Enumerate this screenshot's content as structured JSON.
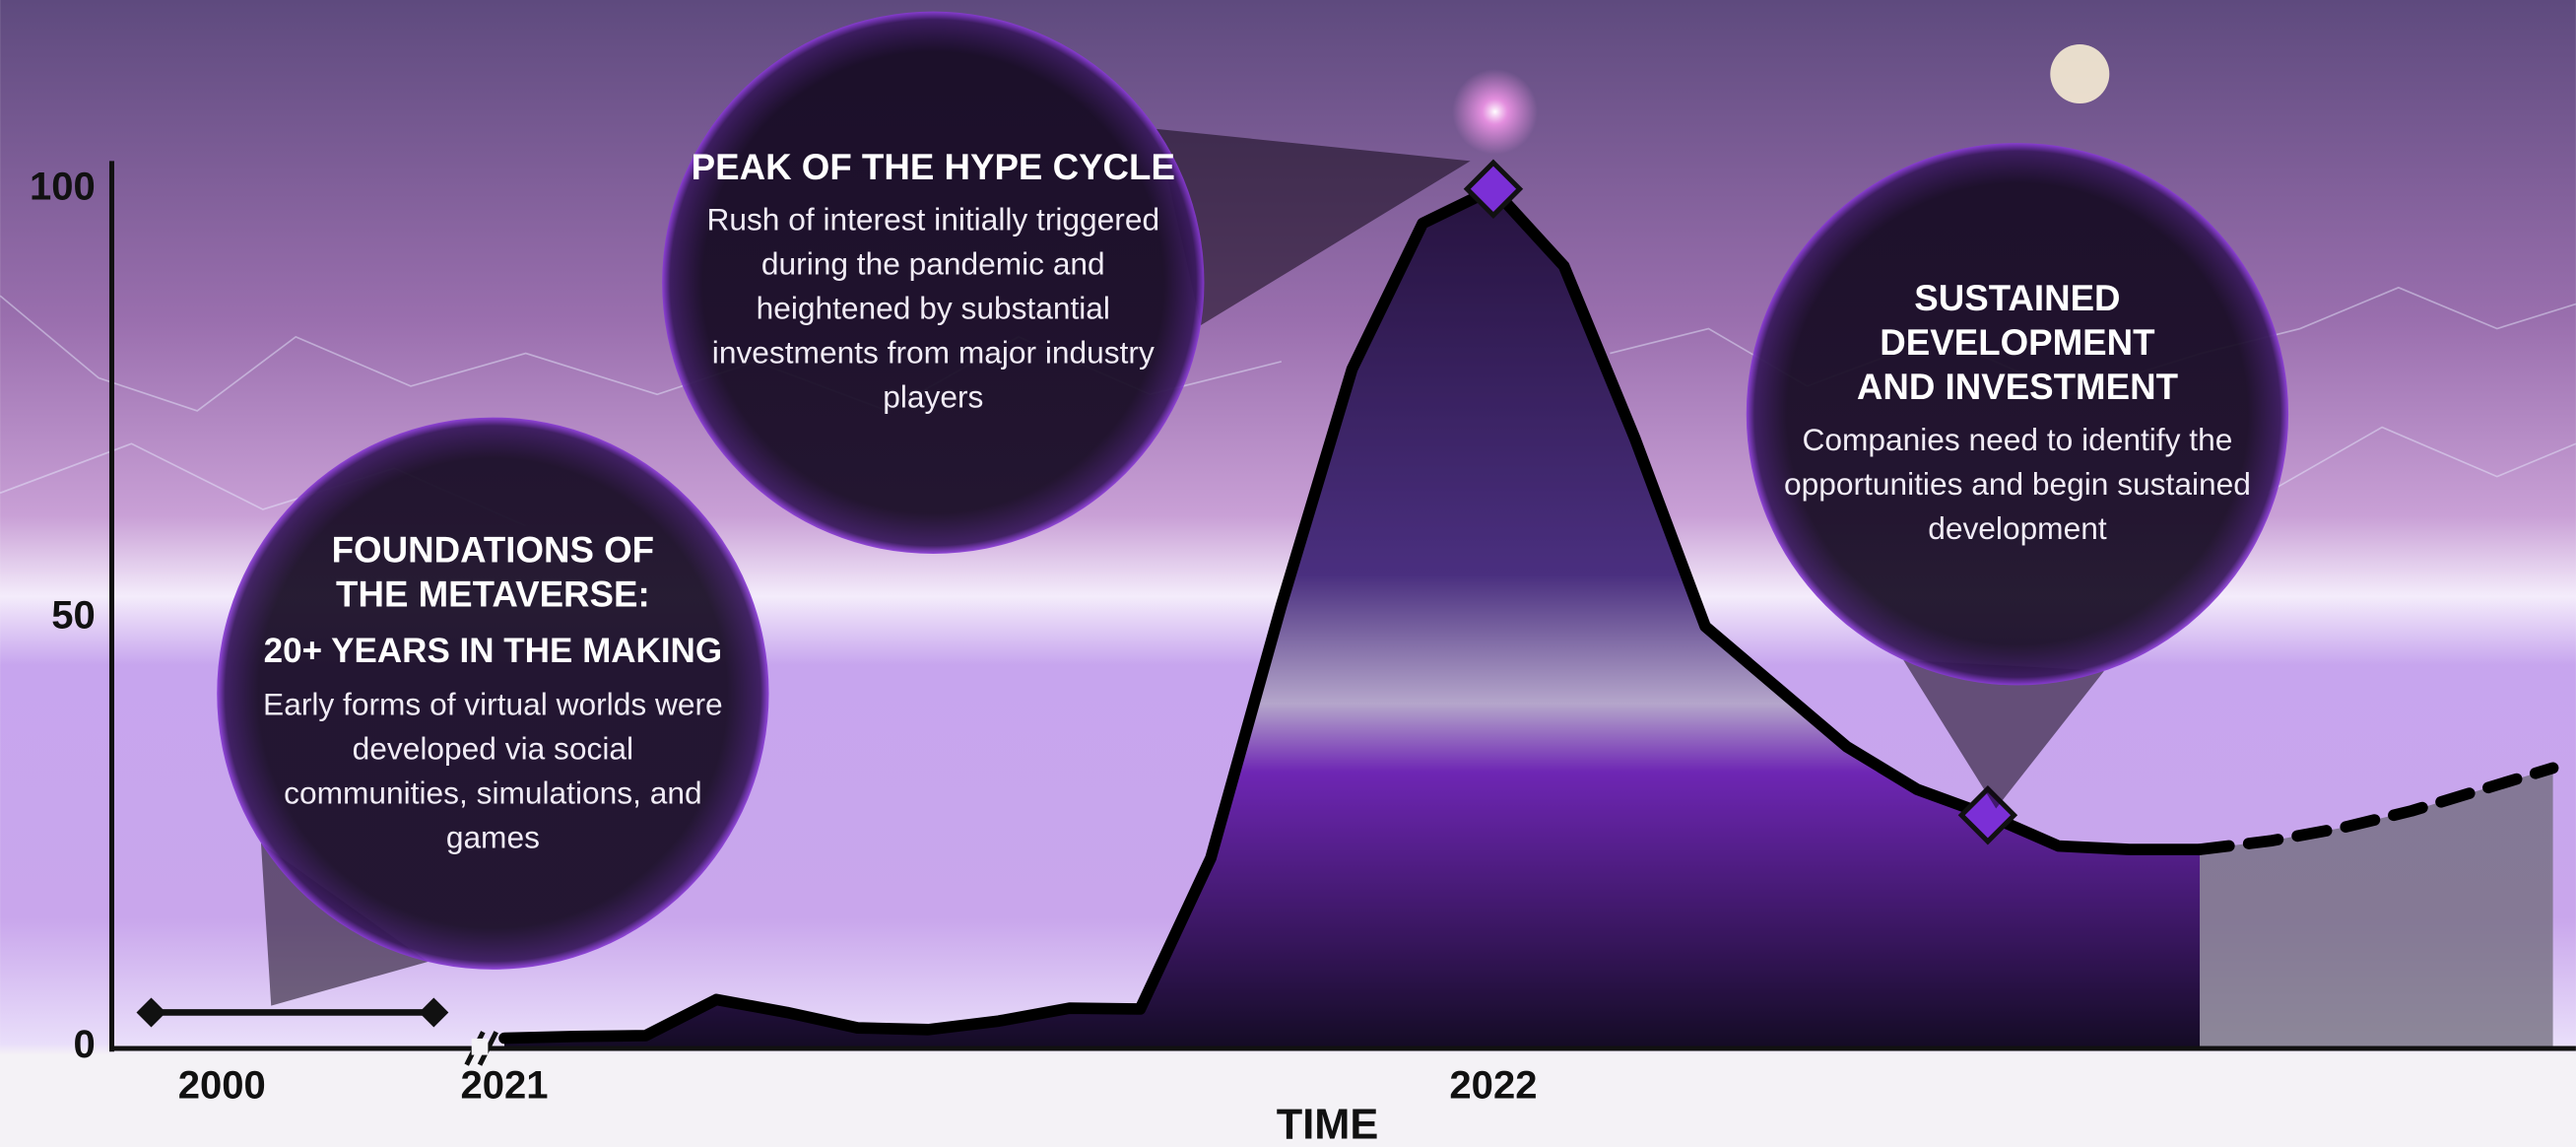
{
  "chart_data": {
    "type": "line",
    "x_label": "TIME",
    "categories": [
      null,
      "2000",
      null,
      null,
      null,
      "2021",
      null,
      null,
      null,
      null,
      null,
      null,
      null,
      null,
      null,
      null,
      null,
      null,
      null,
      "2022",
      null,
      null,
      null,
      null,
      null,
      null,
      null,
      null,
      null,
      null,
      null,
      null,
      null,
      null,
      null
    ],
    "ylim": [
      0,
      100
    ],
    "yticks": [
      0,
      50,
      100
    ],
    "grid": false,
    "series": [
      {
        "color": "#111111",
        "style": "solid",
        "end_markers": true,
        "values": [
          4,
          4,
          4,
          4,
          4,
          null,
          null,
          null,
          null,
          null,
          null,
          null,
          null,
          null,
          null,
          null,
          null,
          null,
          null,
          null,
          null,
          null,
          null,
          null,
          null,
          null,
          null,
          null,
          null,
          null,
          null,
          null,
          null,
          null,
          null
        ]
      },
      {
        "color": "#000000",
        "style": "solid",
        "area": "#1a0f2e",
        "values": [
          null,
          null,
          null,
          null,
          null,
          1,
          1.2,
          1.3,
          5.5,
          4,
          2.2,
          2,
          3,
          4.5,
          4.4,
          22,
          51.5,
          79,
          96,
          100,
          91,
          71,
          49,
          42,
          35,
          30,
          27,
          23.4,
          23,
          23,
          null,
          null,
          null,
          null,
          null
        ]
      },
      {
        "color": "#000000",
        "style": "dashed",
        "area": "#6e6a78",
        "values": [
          null,
          null,
          null,
          null,
          null,
          null,
          null,
          null,
          null,
          null,
          null,
          null,
          null,
          null,
          null,
          null,
          null,
          null,
          null,
          null,
          null,
          null,
          null,
          null,
          null,
          null,
          null,
          null,
          null,
          23,
          24,
          25.5,
          27.5,
          30,
          32.5
        ]
      },
      {
        "color": "#7b2fd6",
        "style": "markers",
        "values": [
          null,
          null,
          null,
          null,
          null,
          null,
          null,
          null,
          null,
          null,
          null,
          null,
          null,
          null,
          null,
          null,
          null,
          null,
          null,
          100,
          null,
          null,
          null,
          null,
          null,
          null,
          27,
          null,
          null,
          null,
          null,
          null,
          null,
          null,
          null
        ]
      }
    ],
    "annotations": [
      {
        "title": "FOUNDATIONS OF THE METAVERSE:",
        "subtitle": "20+ YEARS IN THE MAKING",
        "text": "Early forms of virtual worlds were developed via social communities, simulations, and games"
      },
      {
        "title": "PEAK OF THE HYPE CYCLE",
        "text": "Rush of interest initially triggered during the pandemic and heightened by substantial investments from major industry players"
      },
      {
        "title": "SUSTAINED DEVELOPMENT AND INVESTMENT",
        "text": "Companies need to identify the opportunities and begin sustained development"
      }
    ]
  }
}
